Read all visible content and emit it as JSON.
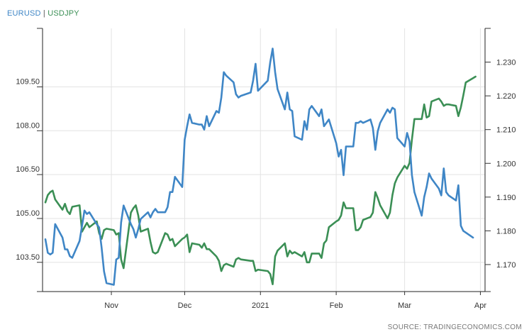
{
  "legend": {
    "s1": "EURUSD",
    "sep": "|",
    "s2": "USDJPY"
  },
  "source": "SOURCE: TRADINGECONOMICS.COM",
  "chart_data": {
    "type": "line",
    "title": "",
    "grid": true,
    "x_ticks": [
      {
        "label": "Nov",
        "date": "2020-11-01"
      },
      {
        "label": "Dec",
        "date": "2020-12-01"
      },
      {
        "label": "2021",
        "date": "2021-01-01"
      },
      {
        "label": "Feb",
        "date": "2021-02-01"
      },
      {
        "label": "Mar",
        "date": "2021-03-01"
      },
      {
        "label": "Apr",
        "date": "2021-04-01"
      }
    ],
    "xlim": [
      "2020-10-05",
      "2021-03-31"
    ],
    "left_axis": {
      "series": "USDJPY",
      "ylim": [
        102.5,
        111.5
      ],
      "ticks": [
        "103.50",
        "105.00",
        "106.50",
        "108.00",
        "109.50"
      ]
    },
    "right_axis": {
      "series": "EURUSD",
      "ylim": [
        1.162,
        1.24
      ],
      "ticks": [
        "1.170",
        "1.180",
        "1.190",
        "1.200",
        "1.210",
        "1.220",
        "1.230"
      ]
    },
    "series": [
      {
        "name": "EURUSD",
        "axis": "right",
        "color": "#3f86c6",
        "points": [
          [
            "2020-10-05",
            1.1775
          ],
          [
            "2020-10-06",
            1.1735
          ],
          [
            "2020-10-07",
            1.173
          ],
          [
            "2020-10-08",
            1.1735
          ],
          [
            "2020-10-09",
            1.182
          ],
          [
            "2020-10-12",
            1.178
          ],
          [
            "2020-10-13",
            1.1745
          ],
          [
            "2020-10-14",
            1.1745
          ],
          [
            "2020-10-15",
            1.1725
          ],
          [
            "2020-10-16",
            1.172
          ],
          [
            "2020-10-19",
            1.177
          ],
          [
            "2020-10-20",
            1.1815
          ],
          [
            "2020-10-21",
            1.186
          ],
          [
            "2020-10-22",
            1.185
          ],
          [
            "2020-10-23",
            1.1855
          ],
          [
            "2020-10-26",
            1.182
          ],
          [
            "2020-10-27",
            1.181
          ],
          [
            "2020-10-28",
            1.175
          ],
          [
            "2020-10-29",
            1.168
          ],
          [
            "2020-10-30",
            1.1645
          ],
          [
            "2020-11-02",
            1.164
          ],
          [
            "2020-11-03",
            1.1715
          ],
          [
            "2020-11-04",
            1.172
          ],
          [
            "2020-11-05",
            1.1825
          ],
          [
            "2020-11-06",
            1.1875
          ],
          [
            "2020-11-09",
            1.182
          ],
          [
            "2020-11-10",
            1.1805
          ],
          [
            "2020-11-11",
            1.178
          ],
          [
            "2020-11-12",
            1.1805
          ],
          [
            "2020-11-13",
            1.1835
          ],
          [
            "2020-11-16",
            1.1855
          ],
          [
            "2020-11-17",
            1.184
          ],
          [
            "2020-11-18",
            1.1855
          ],
          [
            "2020-11-19",
            1.1865
          ],
          [
            "2020-11-20",
            1.1855
          ],
          [
            "2020-11-23",
            1.1855
          ],
          [
            "2020-11-24",
            1.187
          ],
          [
            "2020-11-25",
            1.1915
          ],
          [
            "2020-11-26",
            1.1915
          ],
          [
            "2020-11-27",
            1.196
          ],
          [
            "2020-11-30",
            1.193
          ],
          [
            "2020-12-01",
            1.207
          ],
          [
            "2020-12-02",
            1.211
          ],
          [
            "2020-12-03",
            1.2145
          ],
          [
            "2020-12-04",
            1.212
          ],
          [
            "2020-12-07",
            1.2115
          ],
          [
            "2020-12-08",
            1.2115
          ],
          [
            "2020-12-09",
            1.21
          ],
          [
            "2020-12-10",
            1.214
          ],
          [
            "2020-12-11",
            1.211
          ],
          [
            "2020-12-14",
            1.2155
          ],
          [
            "2020-12-15",
            1.215
          ],
          [
            "2020-12-16",
            1.2195
          ],
          [
            "2020-12-17",
            1.227
          ],
          [
            "2020-12-18",
            1.226
          ],
          [
            "2020-12-21",
            1.224
          ],
          [
            "2020-12-22",
            1.2205
          ],
          [
            "2020-12-23",
            1.2195
          ],
          [
            "2020-12-24",
            1.22
          ],
          [
            "2020-12-28",
            1.221
          ],
          [
            "2020-12-29",
            1.2245
          ],
          [
            "2020-12-30",
            1.2295
          ],
          [
            "2020-12-31",
            1.2215
          ],
          [
            "2021-01-04",
            1.2245
          ],
          [
            "2021-01-05",
            1.23
          ],
          [
            "2021-01-06",
            1.234
          ],
          [
            "2021-01-07",
            1.227
          ],
          [
            "2021-01-08",
            1.222
          ],
          [
            "2021-01-11",
            1.216
          ],
          [
            "2021-01-12",
            1.221
          ],
          [
            "2021-01-13",
            1.216
          ],
          [
            "2021-01-14",
            1.2155
          ],
          [
            "2021-01-15",
            1.208
          ],
          [
            "2021-01-18",
            1.207
          ],
          [
            "2021-01-19",
            1.2125
          ],
          [
            "2021-01-20",
            1.21
          ],
          [
            "2021-01-21",
            1.216
          ],
          [
            "2021-01-22",
            1.217
          ],
          [
            "2021-01-25",
            1.214
          ],
          [
            "2021-01-26",
            1.216
          ],
          [
            "2021-01-27",
            1.211
          ],
          [
            "2021-01-28",
            1.212
          ],
          [
            "2021-01-29",
            1.213
          ],
          [
            "2021-02-01",
            1.206
          ],
          [
            "2021-02-02",
            1.202
          ],
          [
            "2021-02-03",
            1.204
          ],
          [
            "2021-02-04",
            1.1965
          ],
          [
            "2021-02-05",
            1.205
          ],
          [
            "2021-02-08",
            1.205
          ],
          [
            "2021-02-09",
            1.212
          ],
          [
            "2021-02-10",
            1.212
          ],
          [
            "2021-02-11",
            1.2125
          ],
          [
            "2021-02-12",
            1.212
          ],
          [
            "2021-02-15",
            1.213
          ],
          [
            "2021-02-16",
            1.2105
          ],
          [
            "2021-02-17",
            1.204
          ],
          [
            "2021-02-18",
            1.2095
          ],
          [
            "2021-02-19",
            1.212
          ],
          [
            "2021-02-22",
            1.216
          ],
          [
            "2021-02-23",
            1.215
          ],
          [
            "2021-02-24",
            1.2165
          ],
          [
            "2021-02-25",
            1.216
          ],
          [
            "2021-02-26",
            1.2075
          ],
          [
            "2021-03-01",
            1.205
          ],
          [
            "2021-03-02",
            1.209
          ],
          [
            "2021-03-03",
            1.2065
          ],
          [
            "2021-03-04",
            1.1965
          ],
          [
            "2021-03-05",
            1.1915
          ],
          [
            "2021-03-08",
            1.1845
          ],
          [
            "2021-03-09",
            1.19
          ],
          [
            "2021-03-10",
            1.193
          ],
          [
            "2021-03-11",
            1.197
          ],
          [
            "2021-03-12",
            1.1955
          ],
          [
            "2021-03-15",
            1.1925
          ],
          [
            "2021-03-16",
            1.1905
          ],
          [
            "2021-03-17",
            1.1985
          ],
          [
            "2021-03-18",
            1.1915
          ],
          [
            "2021-03-19",
            1.1905
          ],
          [
            "2021-03-22",
            1.189
          ],
          [
            "2021-03-23",
            1.1935
          ],
          [
            "2021-03-24",
            1.1815
          ],
          [
            "2021-03-25",
            1.18
          ],
          [
            "2021-03-26",
            1.1795
          ],
          [
            "2021-03-29",
            1.178
          ]
        ]
      },
      {
        "name": "USDJPY",
        "axis": "left",
        "color": "#3b8f55",
        "points": [
          [
            "2020-10-05",
            105.55
          ],
          [
            "2020-10-06",
            105.8
          ],
          [
            "2020-10-07",
            105.9
          ],
          [
            "2020-10-08",
            105.95
          ],
          [
            "2020-10-09",
            105.65
          ],
          [
            "2020-10-12",
            105.3
          ],
          [
            "2020-10-13",
            105.5
          ],
          [
            "2020-10-14",
            105.25
          ],
          [
            "2020-10-15",
            105.15
          ],
          [
            "2020-10-16",
            105.4
          ],
          [
            "2020-10-19",
            105.45
          ],
          [
            "2020-10-20",
            104.55
          ],
          [
            "2020-10-21",
            104.7
          ],
          [
            "2020-10-22",
            104.85
          ],
          [
            "2020-10-23",
            104.7
          ],
          [
            "2020-10-26",
            104.9
          ],
          [
            "2020-10-27",
            104.5
          ],
          [
            "2020-10-28",
            104.3
          ],
          [
            "2020-10-29",
            104.6
          ],
          [
            "2020-10-30",
            104.65
          ],
          [
            "2020-11-02",
            104.6
          ],
          [
            "2020-11-03",
            104.45
          ],
          [
            "2020-11-04",
            104.5
          ],
          [
            "2020-11-05",
            103.6
          ],
          [
            "2020-11-06",
            103.3
          ],
          [
            "2020-11-09",
            105.2
          ],
          [
            "2020-11-10",
            105.35
          ],
          [
            "2020-11-11",
            105.45
          ],
          [
            "2020-11-12",
            105.1
          ],
          [
            "2020-11-13",
            104.55
          ],
          [
            "2020-11-16",
            104.65
          ],
          [
            "2020-11-17",
            104.2
          ],
          [
            "2020-11-18",
            103.85
          ],
          [
            "2020-11-19",
            103.8
          ],
          [
            "2020-11-20",
            103.85
          ],
          [
            "2020-11-23",
            104.5
          ],
          [
            "2020-11-24",
            104.45
          ],
          [
            "2020-11-25",
            104.25
          ],
          [
            "2020-11-26",
            104.3
          ],
          [
            "2020-11-27",
            104.05
          ],
          [
            "2020-11-30",
            104.3
          ],
          [
            "2020-12-01",
            104.35
          ],
          [
            "2020-12-02",
            104.45
          ],
          [
            "2020-12-03",
            103.85
          ],
          [
            "2020-12-04",
            104.15
          ],
          [
            "2020-12-07",
            104.1
          ],
          [
            "2020-12-08",
            104.0
          ],
          [
            "2020-12-09",
            104.15
          ],
          [
            "2020-12-10",
            103.95
          ],
          [
            "2020-12-11",
            103.95
          ],
          [
            "2020-12-14",
            103.7
          ],
          [
            "2020-12-15",
            103.55
          ],
          [
            "2020-12-16",
            103.2
          ],
          [
            "2020-12-17",
            103.4
          ],
          [
            "2020-12-18",
            103.45
          ],
          [
            "2020-12-21",
            103.35
          ],
          [
            "2020-12-22",
            103.6
          ],
          [
            "2020-12-23",
            103.65
          ],
          [
            "2020-12-24",
            103.6
          ],
          [
            "2020-12-28",
            103.55
          ],
          [
            "2020-12-29",
            103.55
          ],
          [
            "2020-12-30",
            103.2
          ],
          [
            "2020-12-31",
            103.25
          ],
          [
            "2021-01-04",
            103.2
          ],
          [
            "2021-01-05",
            103.1
          ],
          [
            "2021-01-06",
            102.75
          ],
          [
            "2021-01-07",
            103.7
          ],
          [
            "2021-01-08",
            103.9
          ],
          [
            "2021-01-11",
            104.15
          ],
          [
            "2021-01-12",
            103.7
          ],
          [
            "2021-01-13",
            103.9
          ],
          [
            "2021-01-14",
            103.8
          ],
          [
            "2021-01-15",
            103.85
          ],
          [
            "2021-01-18",
            103.7
          ],
          [
            "2021-01-19",
            103.85
          ],
          [
            "2021-01-20",
            103.5
          ],
          [
            "2021-01-21",
            103.5
          ],
          [
            "2021-01-22",
            103.8
          ],
          [
            "2021-01-25",
            103.8
          ],
          [
            "2021-01-26",
            103.65
          ],
          [
            "2021-01-27",
            104.15
          ],
          [
            "2021-01-28",
            104.25
          ],
          [
            "2021-01-29",
            104.7
          ],
          [
            "2021-02-01",
            104.9
          ],
          [
            "2021-02-02",
            104.95
          ],
          [
            "2021-02-03",
            105.1
          ],
          [
            "2021-02-04",
            105.55
          ],
          [
            "2021-02-05",
            105.35
          ],
          [
            "2021-02-08",
            105.35
          ],
          [
            "2021-02-09",
            104.6
          ],
          [
            "2021-02-10",
            104.6
          ],
          [
            "2021-02-11",
            104.7
          ],
          [
            "2021-02-12",
            104.95
          ],
          [
            "2021-02-15",
            105.05
          ],
          [
            "2021-02-16",
            105.2
          ],
          [
            "2021-02-17",
            105.9
          ],
          [
            "2021-02-18",
            105.7
          ],
          [
            "2021-02-19",
            105.45
          ],
          [
            "2021-02-22",
            105.0
          ],
          [
            "2021-02-23",
            105.2
          ],
          [
            "2021-02-24",
            105.8
          ],
          [
            "2021-02-25",
            106.2
          ],
          [
            "2021-02-26",
            106.4
          ],
          [
            "2021-03-01",
            106.8
          ],
          [
            "2021-03-02",
            106.7
          ],
          [
            "2021-03-03",
            106.9
          ],
          [
            "2021-03-04",
            107.7
          ],
          [
            "2021-03-05",
            108.4
          ],
          [
            "2021-03-08",
            108.4
          ],
          [
            "2021-03-09",
            108.9
          ],
          [
            "2021-03-10",
            108.45
          ],
          [
            "2021-03-11",
            108.5
          ],
          [
            "2021-03-12",
            109.0
          ],
          [
            "2021-03-15",
            109.1
          ],
          [
            "2021-03-16",
            109.0
          ],
          [
            "2021-03-17",
            108.85
          ],
          [
            "2021-03-18",
            108.9
          ],
          [
            "2021-03-19",
            108.9
          ],
          [
            "2021-03-22",
            108.85
          ],
          [
            "2021-03-23",
            108.5
          ],
          [
            "2021-03-24",
            108.8
          ],
          [
            "2021-03-25",
            109.2
          ],
          [
            "2021-03-26",
            109.65
          ],
          [
            "2021-03-29",
            109.8
          ],
          [
            "2021-03-30",
            109.85
          ]
        ]
      }
    ]
  }
}
